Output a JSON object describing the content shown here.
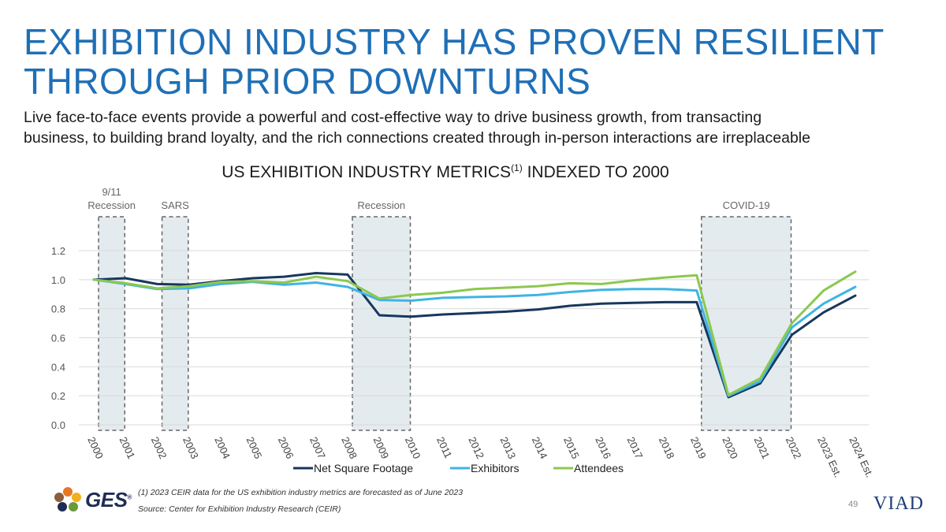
{
  "slide": {
    "title_line1": "EXHIBITION INDUSTRY HAS PROVEN RESILIENT",
    "title_line2": "THROUGH PRIOR DOWNTURNS",
    "subtitle_line1": "Live face-to-face events provide a powerful and cost-effective way to drive business growth, from transacting",
    "subtitle_line2": "business, to building brand loyalty, and the rich connections created through in-person interactions are irreplaceable",
    "chart_title_main": "US EXHIBITION INDUSTRY METRICS",
    "chart_title_sup": "(1)",
    "chart_title_tail": " INDEXED TO 2000",
    "footnote": "(1) 2023 CEIR data for the US exhibition industry metrics are forecasted as of June 2023",
    "source": "Source: Center for Exhibition Industry Research (CEIR)",
    "page_number": "49",
    "logo_left": "GES",
    "logo_left_mark": "®",
    "logo_right": "VIAD"
  },
  "colors": {
    "title": "#1f6fb6",
    "net_square_footage": "#17375e",
    "exhibitors": "#3fb4e5",
    "attendees": "#8cc84f",
    "shade": "#e4ebef"
  },
  "chart_data": {
    "type": "line",
    "title": "US EXHIBITION INDUSTRY METRICS(1) INDEXED TO 2000",
    "categories": [
      "2000",
      "2001",
      "2002",
      "2003",
      "2004",
      "2005",
      "2006",
      "2007",
      "2008",
      "2009",
      "2010",
      "2011",
      "2012",
      "2013",
      "2014",
      "2015",
      "2016",
      "2017",
      "2018",
      "2019",
      "2020",
      "2021",
      "2022",
      "2023 Est.",
      "2024 Est."
    ],
    "series": [
      {
        "name": "Net Square Footage",
        "color": "#17375e",
        "values": [
          1.0,
          1.01,
          0.97,
          0.965,
          0.99,
          1.01,
          1.02,
          1.045,
          1.035,
          0.755,
          0.745,
          0.76,
          0.77,
          0.78,
          0.795,
          0.82,
          0.835,
          0.84,
          0.845,
          0.845,
          0.19,
          0.285,
          0.62,
          0.775,
          0.89
        ]
      },
      {
        "name": "Exhibitors",
        "color": "#3fb4e5",
        "values": [
          1.0,
          0.97,
          0.935,
          0.94,
          0.97,
          0.985,
          0.965,
          0.98,
          0.95,
          0.86,
          0.855,
          0.875,
          0.88,
          0.885,
          0.895,
          0.915,
          0.93,
          0.935,
          0.935,
          0.925,
          0.2,
          0.3,
          0.67,
          0.835,
          0.95
        ]
      },
      {
        "name": "Attendees",
        "color": "#8cc84f",
        "values": [
          1.0,
          0.975,
          0.94,
          0.955,
          0.985,
          0.99,
          0.98,
          1.02,
          0.99,
          0.87,
          0.895,
          0.91,
          0.935,
          0.945,
          0.955,
          0.975,
          0.97,
          0.995,
          1.015,
          1.03,
          0.205,
          0.32,
          0.7,
          0.925,
          1.055
        ]
      }
    ],
    "ylim": [
      0,
      1.2
    ],
    "yticks": [
      0.0,
      0.2,
      0.4,
      0.6,
      0.8,
      1.0,
      1.2
    ],
    "ytick_labels": [
      "0.0",
      "0.2",
      "0.4",
      "0.6",
      "0.8",
      "1.0",
      "1.2"
    ],
    "grid": true,
    "legend": "bottom",
    "shaded_periods": [
      {
        "label": "9/11\nRecession",
        "from": "2000",
        "to": "2001"
      },
      {
        "label": "SARS",
        "from": "2002",
        "to": "2003"
      },
      {
        "label": "Recession",
        "from": "2008",
        "to": "2010"
      },
      {
        "label": "COVID-19",
        "from": "2019",
        "to": "2022"
      }
    ]
  }
}
